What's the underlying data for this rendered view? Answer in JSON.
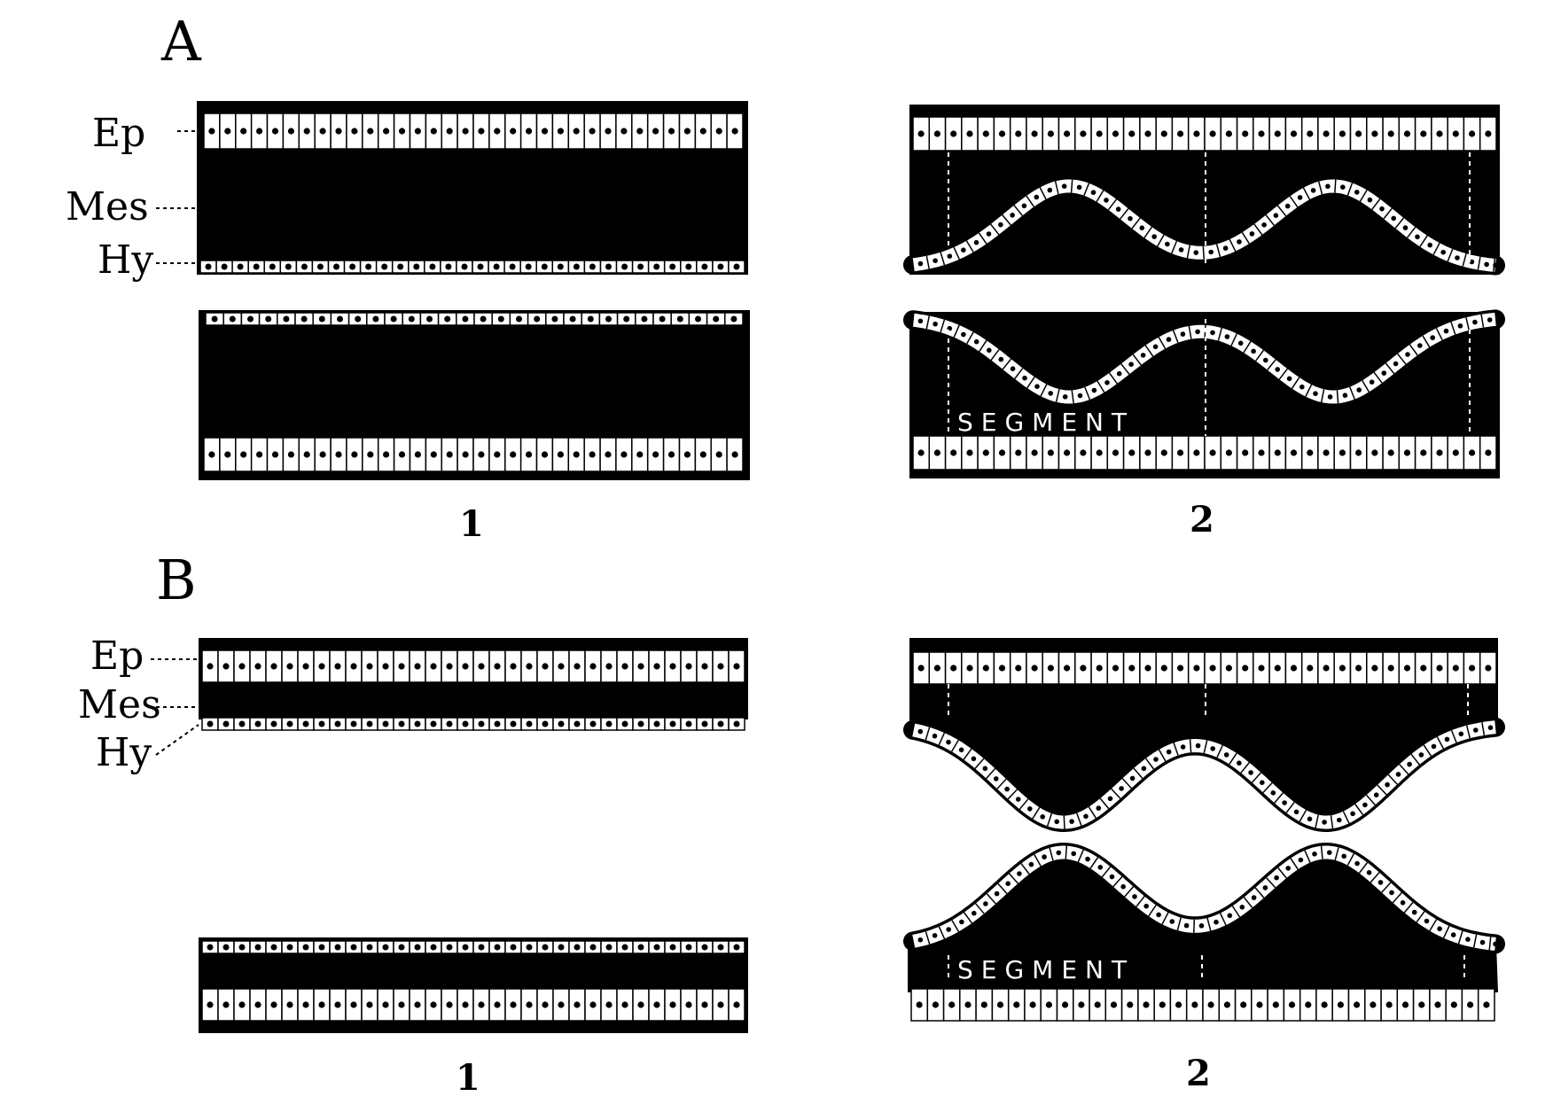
{
  "panels": {
    "A": "A",
    "B": "B"
  },
  "layer_labels": {
    "ep": "Ep",
    "mes": "Mes",
    "hy": "Hy"
  },
  "stage_labels": {
    "first": "1",
    "second": "2"
  },
  "segment_label": "SEGMENT",
  "colors": {
    "tissue": "#000000",
    "cell": "#ffffff",
    "background": "#ffffff"
  }
}
